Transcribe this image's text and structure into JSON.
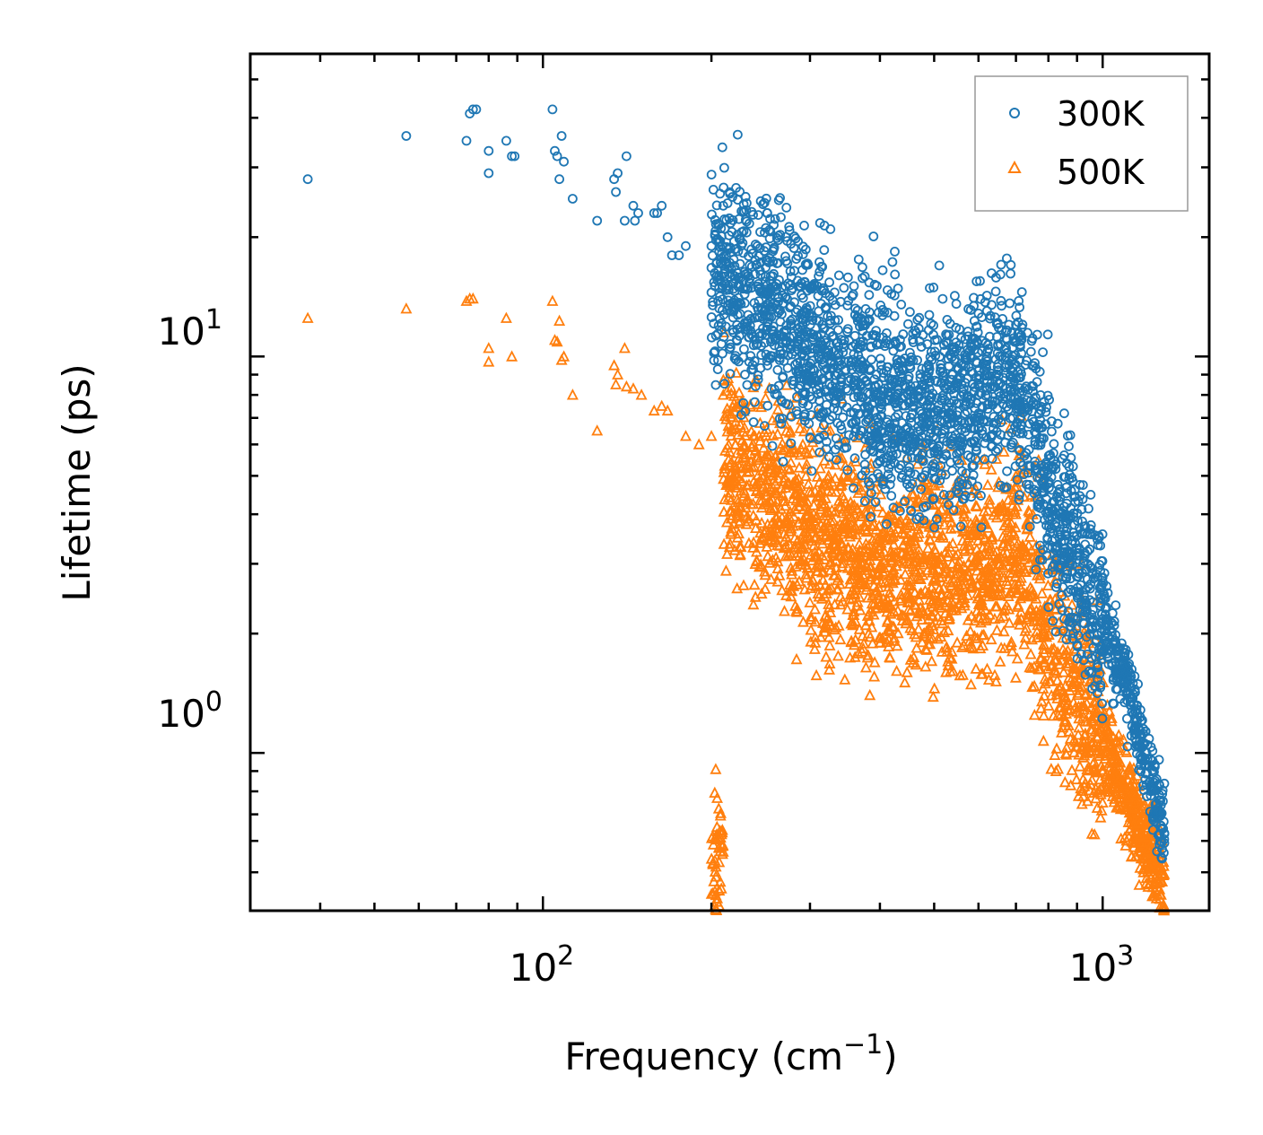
{
  "chart_data": {
    "type": "scatter",
    "title": "",
    "xlabel": "Frequency (cm",
    "xlabel_sup": "−1",
    "xlabel_close": ")",
    "ylabel": "Lifetime (ps)",
    "xscale": "log",
    "yscale": "log",
    "xlim": [
      30,
      1550
    ],
    "ylim": [
      0.4,
      58
    ],
    "x_ticks": [
      {
        "value": 100,
        "base": "10",
        "exp": "2"
      },
      {
        "value": 1000,
        "base": "10",
        "exp": "3"
      }
    ],
    "y_ticks": [
      {
        "value": 1,
        "base": "10",
        "exp": "0"
      },
      {
        "value": 10,
        "base": "10",
        "exp": "1"
      }
    ],
    "legend_position": "top-right",
    "series": [
      {
        "name": "300K",
        "marker": "circle",
        "color": "#1f77b4",
        "x": [
          38,
          57,
          73,
          74,
          75,
          76,
          80,
          80,
          86,
          88,
          89,
          104,
          105,
          106,
          107,
          108,
          109,
          113,
          125,
          134,
          135,
          136,
          140,
          141,
          145,
          146,
          148,
          158,
          160,
          163,
          167,
          170,
          175,
          180,
          200,
          210
        ],
        "y": [
          28,
          36,
          35,
          41,
          42,
          42,
          29,
          33,
          35,
          32,
          32,
          42,
          33,
          32,
          28,
          36,
          31,
          25,
          22,
          28,
          26,
          29,
          22,
          32,
          24,
          22,
          23,
          23,
          23,
          24,
          20,
          18,
          18,
          19,
          19,
          24
        ]
      },
      {
        "name": "500K",
        "marker": "triangle",
        "color": "#ff7f0e",
        "x": [
          38,
          57,
          73,
          74,
          75,
          80,
          80,
          86,
          88,
          104,
          105,
          106,
          107,
          108,
          109,
          113,
          125,
          134,
          135,
          136,
          140,
          141,
          145,
          150,
          158,
          163,
          167,
          180,
          190,
          200,
          210,
          222
        ],
        "y": [
          12.5,
          13.2,
          13.8,
          14.0,
          14.0,
          10.5,
          9.7,
          12.5,
          10.0,
          13.8,
          11.0,
          10.9,
          12.3,
          9.8,
          10.0,
          8.0,
          6.5,
          9.5,
          8.5,
          9.0,
          10.5,
          8.4,
          8.3,
          8.0,
          7.3,
          7.5,
          7.3,
          6.3,
          6.0,
          6.3,
          8.0,
          5.7
        ]
      }
    ],
    "annotations": []
  }
}
